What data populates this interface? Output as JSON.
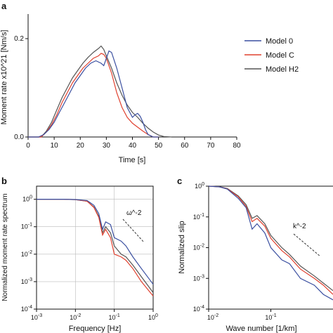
{
  "chart_data": [
    {
      "panel": "a",
      "type": "line",
      "title": "",
      "xlabel": "Time [s]",
      "ylabel": "Moment rate x10^21 [Nm/s]",
      "xlim": [
        0,
        80
      ],
      "ylim": [
        0,
        0.25
      ],
      "xticks": [
        0,
        10,
        20,
        30,
        40,
        50,
        60,
        70,
        80
      ],
      "xtick_labels": [
        "0",
        "10",
        "20",
        "30",
        "40",
        "50",
        "60",
        "70",
        "80"
      ],
      "yticks": [
        0,
        0.2
      ],
      "ytick_labels": [
        "0.0",
        "0.2"
      ],
      "grid": false,
      "legend_position": "top-right",
      "legend": [
        "Model 0",
        "Model C",
        "Model H2"
      ],
      "series": [
        {
          "name": "Model 0",
          "color": "#3a4fa0",
          "x": [
            0,
            4,
            6,
            8,
            10,
            12,
            14,
            16,
            18,
            20,
            22,
            24,
            26,
            28,
            29,
            30,
            31,
            32,
            34,
            36,
            38,
            40,
            41,
            42,
            43,
            44,
            45,
            46,
            48,
            50
          ],
          "y": [
            0,
            0.0,
            0.005,
            0.015,
            0.03,
            0.05,
            0.07,
            0.09,
            0.11,
            0.125,
            0.14,
            0.15,
            0.155,
            0.15,
            0.145,
            0.16,
            0.175,
            0.172,
            0.14,
            0.1,
            0.06,
            0.04,
            0.045,
            0.048,
            0.042,
            0.03,
            0.015,
            0.005,
            0.0,
            0.0
          ]
        },
        {
          "name": "Model C",
          "color": "#e0412f",
          "x": [
            0,
            5,
            7,
            9,
            11,
            13,
            15,
            17,
            19,
            21,
            23,
            25,
            27,
            28,
            29,
            30,
            32,
            34,
            36,
            38,
            40,
            42,
            44,
            46,
            48,
            50
          ],
          "y": [
            0,
            0.0,
            0.01,
            0.025,
            0.045,
            0.07,
            0.09,
            0.11,
            0.125,
            0.14,
            0.15,
            0.16,
            0.165,
            0.17,
            0.168,
            0.16,
            0.13,
            0.09,
            0.06,
            0.04,
            0.028,
            0.02,
            0.012,
            0.005,
            0.0,
            0.0
          ]
        },
        {
          "name": "Model H2",
          "color": "#555555",
          "x": [
            0,
            5,
            7,
            9,
            11,
            13,
            15,
            17,
            19,
            21,
            23,
            25,
            27,
            28,
            29,
            30,
            32,
            34,
            36,
            38,
            40,
            42,
            44,
            46,
            48,
            50,
            52,
            55
          ],
          "y": [
            0,
            0.0,
            0.012,
            0.03,
            0.055,
            0.08,
            0.1,
            0.12,
            0.135,
            0.15,
            0.162,
            0.172,
            0.18,
            0.185,
            0.178,
            0.165,
            0.14,
            0.11,
            0.085,
            0.065,
            0.05,
            0.04,
            0.028,
            0.018,
            0.01,
            0.004,
            0.001,
            0.0
          ]
        }
      ]
    },
    {
      "panel": "b",
      "type": "line",
      "title": "",
      "xlabel": "Frequency [Hz]",
      "ylabel": "Normalized moment rate spectrum",
      "xscale": "log",
      "yscale": "log",
      "xlim": [
        0.001,
        1
      ],
      "ylim": [
        0.0001,
        3
      ],
      "xtick_labels": [
        "10^-3",
        "10^-2",
        "10^-1",
        "10^0"
      ],
      "ytick_labels": [
        "10^-4",
        "10^-3",
        "10^-2",
        "10^-1",
        "10^0"
      ],
      "grid": true,
      "annotation": "ω^-2",
      "series": [
        {
          "name": "Model 0",
          "color": "#3a4fa0",
          "x": [
            0.001,
            0.005,
            0.01,
            0.02,
            0.03,
            0.04,
            0.05,
            0.06,
            0.08,
            0.1,
            0.15,
            0.2,
            0.3,
            0.5,
            1.0
          ],
          "y": [
            1,
            1,
            0.98,
            0.9,
            0.6,
            0.3,
            0.08,
            0.15,
            0.12,
            0.04,
            0.03,
            0.02,
            0.008,
            0.003,
            0.0008
          ]
        },
        {
          "name": "Model C",
          "color": "#e0412f",
          "x": [
            0.001,
            0.005,
            0.01,
            0.02,
            0.03,
            0.04,
            0.05,
            0.06,
            0.08,
            0.1,
            0.15,
            0.2,
            0.3,
            0.5,
            1.0
          ],
          "y": [
            1,
            1,
            0.97,
            0.85,
            0.5,
            0.22,
            0.05,
            0.08,
            0.04,
            0.01,
            0.008,
            0.006,
            0.003,
            0.001,
            0.0003
          ]
        },
        {
          "name": "Model H2",
          "color": "#555555",
          "x": [
            0.001,
            0.005,
            0.01,
            0.02,
            0.03,
            0.04,
            0.05,
            0.06,
            0.08,
            0.1,
            0.15,
            0.2,
            0.3,
            0.5,
            1.0
          ],
          "y": [
            1,
            1,
            0.97,
            0.85,
            0.52,
            0.24,
            0.06,
            0.1,
            0.06,
            0.02,
            0.01,
            0.008,
            0.004,
            0.0015,
            0.0004
          ]
        }
      ]
    },
    {
      "panel": "c",
      "type": "line",
      "title": "",
      "xlabel": "Wave number [1/km]",
      "ylabel": "Normalized slip",
      "xscale": "log",
      "yscale": "log",
      "xlim": [
        0.01,
        1
      ],
      "ylim": [
        0.0001,
        1
      ],
      "xtick_labels": [
        "10^-2",
        "10^-1"
      ],
      "ytick_labels": [
        "10^-4",
        "10^-3",
        "10^-2",
        "10^-1",
        "10^0"
      ],
      "grid": false,
      "annotation": "k^-2",
      "series": [
        {
          "name": "Model 0",
          "color": "#3a4fa0",
          "x": [
            0.01,
            0.015,
            0.02,
            0.03,
            0.04,
            0.05,
            0.06,
            0.08,
            0.1,
            0.15,
            0.2,
            0.3,
            0.5,
            0.7,
            1.0
          ],
          "y": [
            1,
            0.95,
            0.8,
            0.4,
            0.2,
            0.04,
            0.06,
            0.03,
            0.01,
            0.004,
            0.003,
            0.001,
            0.0006,
            0.0003,
            0.0002
          ]
        },
        {
          "name": "Model C",
          "color": "#e0412f",
          "x": [
            0.01,
            0.015,
            0.02,
            0.03,
            0.04,
            0.05,
            0.06,
            0.08,
            0.1,
            0.15,
            0.2,
            0.3,
            0.5,
            0.7,
            1.0
          ],
          "y": [
            1,
            0.95,
            0.82,
            0.45,
            0.22,
            0.07,
            0.09,
            0.05,
            0.02,
            0.008,
            0.005,
            0.002,
            0.001,
            0.0006,
            0.0003
          ]
        },
        {
          "name": "Model H2",
          "color": "#555555",
          "x": [
            0.01,
            0.015,
            0.02,
            0.03,
            0.04,
            0.05,
            0.06,
            0.08,
            0.1,
            0.15,
            0.2,
            0.3,
            0.5,
            0.7,
            1.0
          ],
          "y": [
            1,
            0.96,
            0.84,
            0.48,
            0.25,
            0.09,
            0.11,
            0.06,
            0.025,
            0.01,
            0.006,
            0.0025,
            0.0012,
            0.0007,
            0.0004
          ]
        }
      ]
    }
  ],
  "panel_labels": {
    "a": "a",
    "b": "b",
    "c": "c"
  }
}
